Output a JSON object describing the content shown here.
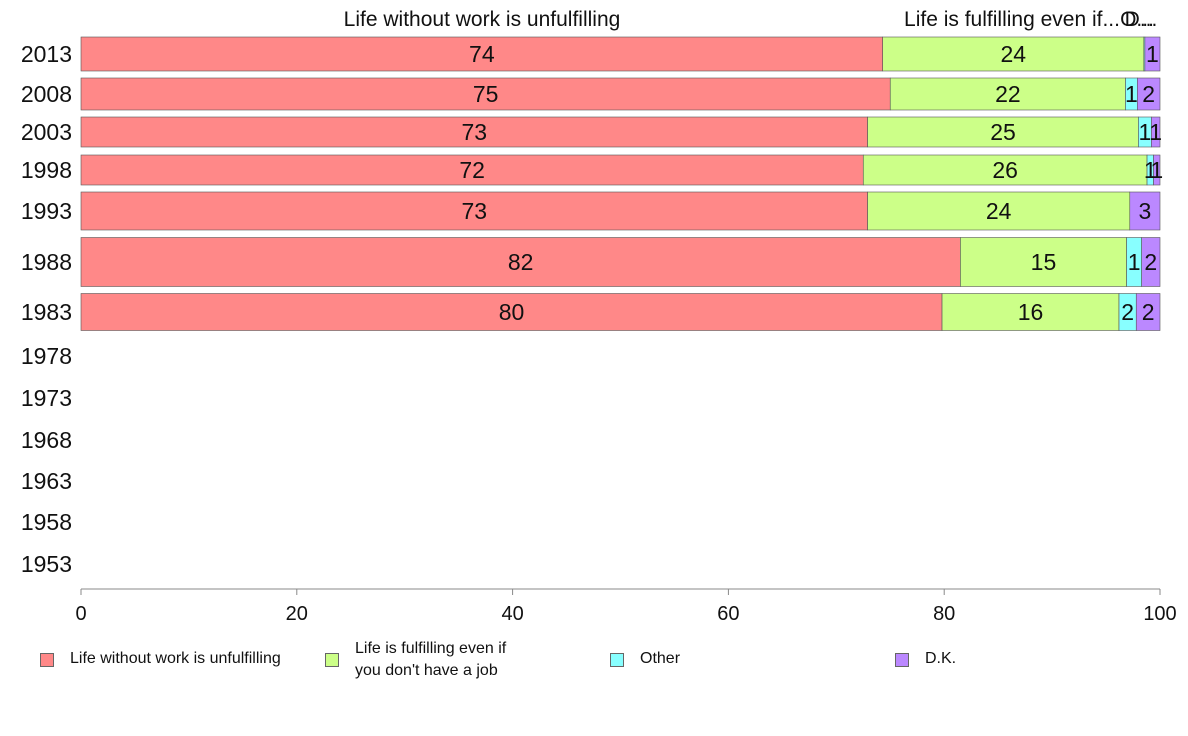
{
  "chart_data": {
    "type": "bar",
    "orientation": "horizontal",
    "stacked": true,
    "categories": [
      "2013",
      "2008",
      "2003",
      "1998",
      "1993",
      "1988",
      "1983",
      "1978",
      "1973",
      "1968",
      "1963",
      "1958",
      "1953"
    ],
    "series": [
      {
        "name": "Life without work is unfulfilling",
        "color": "#ff8888",
        "values": [
          74.3,
          75,
          72.9,
          72.5,
          72.9,
          81.5,
          79.8,
          null,
          null,
          null,
          null,
          null,
          null
        ]
      },
      {
        "name": "Life is fulfilling even if you don't have a job",
        "color": "#ccff88",
        "values": [
          24.2,
          21.8,
          25.1,
          26.3,
          24.3,
          15.4,
          16.4,
          null,
          null,
          null,
          null,
          null,
          null
        ]
      },
      {
        "name": "Other",
        "color": "#88ffff",
        "values": [
          0.1,
          1.1,
          1.2,
          0.6,
          0,
          1.4,
          1.6,
          null,
          null,
          null,
          null,
          null,
          null
        ]
      },
      {
        "name": "D.K.",
        "color": "#bb88ff",
        "values": [
          1.4,
          2.1,
          0.8,
          0.6,
          2.8,
          1.7,
          2.2,
          null,
          null,
          null,
          null,
          null,
          null
        ]
      }
    ],
    "bar_labels": [
      [
        "74",
        "24",
        "",
        "1"
      ],
      [
        "75",
        "22",
        "1",
        "2"
      ],
      [
        "73",
        "25",
        "1",
        "1"
      ],
      [
        "72",
        "26",
        "1",
        "1"
      ],
      [
        "73",
        "24",
        "",
        "3"
      ],
      [
        "82",
        "15",
        "1",
        "2"
      ],
      [
        "80",
        "16",
        "2",
        "2"
      ]
    ],
    "top_labels": [
      "Life without work is unfulfilling",
      "Life is fulfilling even if...",
      "O...",
      "D..."
    ],
    "xlim": [
      0,
      100
    ],
    "xticks": [
      "0",
      "20",
      "40",
      "60",
      "80",
      "100"
    ],
    "legend_labels": [
      "Life without work is unfulfilling",
      "Life is fulfilling even if\nyou don't have a job",
      "Other",
      "D.K."
    ],
    "legend_position": "bottom",
    "grid": false
  }
}
